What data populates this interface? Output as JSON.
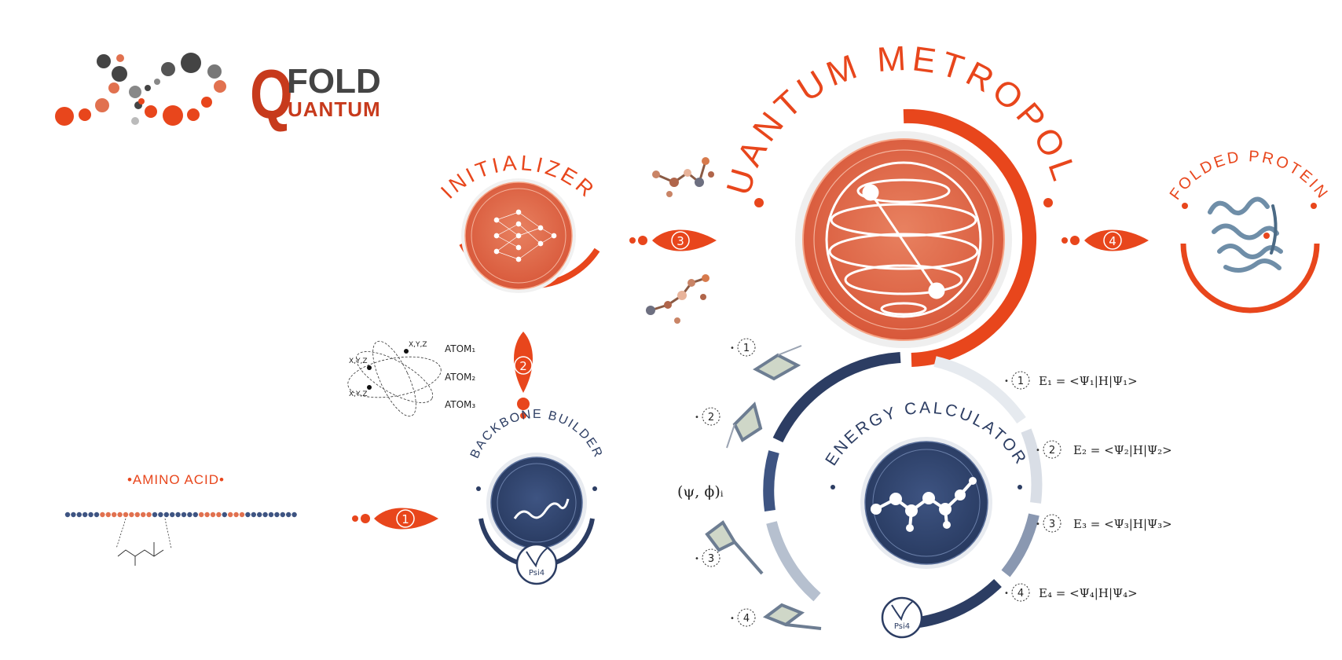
{
  "logo": {
    "word_top": "FOLD",
    "word_bottom": "UANTUM",
    "letter_q": "Q"
  },
  "stages": {
    "amino_acid": "•AMINO ACID•",
    "initializer": "INITIALIZER",
    "metropolis": "QUANTUM METROPOLIS",
    "folded": "FOLDED PROTEIN",
    "backbone": "BACKBONE BUILDER",
    "energy": "ENERGY CALCULATOR"
  },
  "steps": [
    "1",
    "2",
    "3",
    "4"
  ],
  "atoms": {
    "coord_label": "X,Y,Z",
    "labels": [
      "ATOM₁",
      "ATOM₂",
      "ATOM₃"
    ]
  },
  "psi4": "Psi4",
  "angles": "(ψ, ϕ)ᵢ",
  "conformers": [
    "1",
    "2",
    "3",
    "4"
  ],
  "energies": [
    {
      "n": "1",
      "eq": "E₁ = <Ψ₁|H|Ψ₁>"
    },
    {
      "n": "2",
      "eq": "E₂ = <Ψ₂|H|Ψ₂>"
    },
    {
      "n": "3",
      "eq": "E₃ = <Ψ₃|H|Ψ₃>"
    },
    {
      "n": "4",
      "eq": "E₄ = <Ψ₄|H|Ψ₄>"
    }
  ],
  "colors": {
    "orange": "#e8461c",
    "orange_light": "#e1714f",
    "navy": "#2c3d63",
    "navy_light": "#3e5482",
    "gray": "#555555"
  }
}
